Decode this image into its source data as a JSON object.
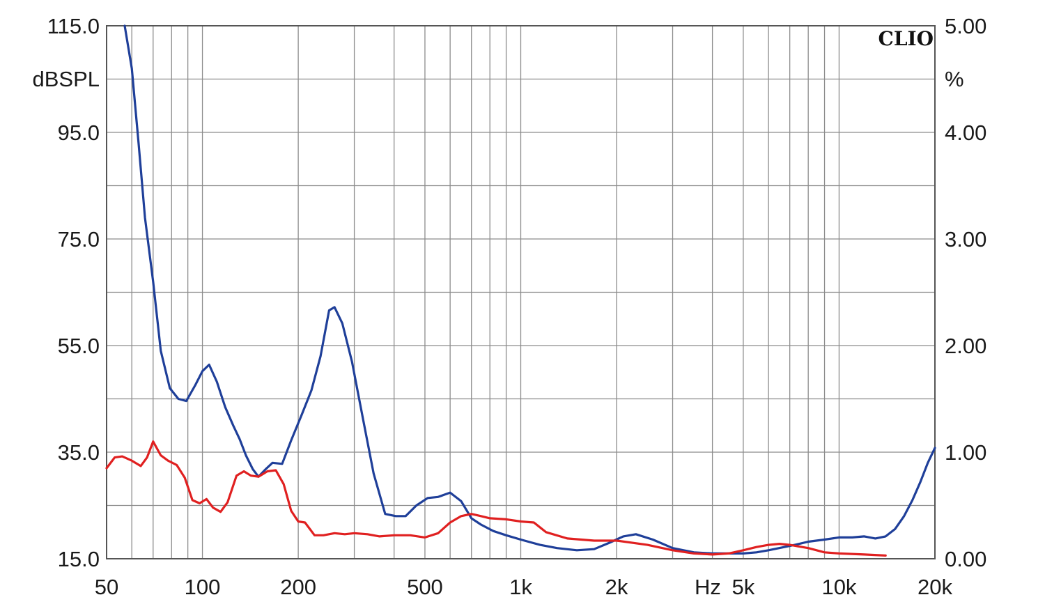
{
  "chart_data": {
    "type": "line",
    "brand": "CLIO",
    "x_scale": "log",
    "xlim": [
      50,
      20000
    ],
    "xticks": [
      50,
      100,
      200,
      500,
      1000,
      2000,
      5000,
      10000,
      20000
    ],
    "xtick_labels": [
      "50",
      "100",
      "200",
      "500",
      "1k",
      "2k",
      "5k",
      "10k",
      "20k"
    ],
    "xlabel": "Hz",
    "ylabel_left": "dBSPL",
    "ylim_left": [
      15,
      115
    ],
    "yticks_left": [
      "115.0",
      "95.0",
      "75.0",
      "55.0",
      "35.0",
      "15.0"
    ],
    "ylabel_right": "%",
    "ylim_right": [
      0,
      5
    ],
    "yticks_right": [
      "5.00",
      "4.00",
      "3.00",
      "2.00",
      "1.00",
      "0.00"
    ],
    "grid": true,
    "series": [
      {
        "color": "#1f3f99",
        "axis": "right",
        "points": [
          [
            57,
            5.0
          ],
          [
            60,
            4.6
          ],
          [
            63,
            3.9
          ],
          [
            66,
            3.2
          ],
          [
            70,
            2.6
          ],
          [
            74,
            1.95
          ],
          [
            79,
            1.6
          ],
          [
            84,
            1.5
          ],
          [
            89,
            1.48
          ],
          [
            95,
            1.63
          ],
          [
            100,
            1.76
          ],
          [
            105,
            1.82
          ],
          [
            111,
            1.66
          ],
          [
            118,
            1.42
          ],
          [
            125,
            1.25
          ],
          [
            131,
            1.12
          ],
          [
            137,
            0.97
          ],
          [
            144,
            0.84
          ],
          [
            150,
            0.77
          ],
          [
            158,
            0.84
          ],
          [
            166,
            0.9
          ],
          [
            178,
            0.89
          ],
          [
            190,
            1.11
          ],
          [
            205,
            1.35
          ],
          [
            220,
            1.58
          ],
          [
            235,
            1.9
          ],
          [
            250,
            2.33
          ],
          [
            260,
            2.36
          ],
          [
            275,
            2.21
          ],
          [
            295,
            1.85
          ],
          [
            320,
            1.3
          ],
          [
            345,
            0.8
          ],
          [
            375,
            0.42
          ],
          [
            405,
            0.4
          ],
          [
            435,
            0.4
          ],
          [
            470,
            0.5
          ],
          [
            510,
            0.57
          ],
          [
            550,
            0.58
          ],
          [
            600,
            0.62
          ],
          [
            650,
            0.54
          ],
          [
            700,
            0.38
          ],
          [
            750,
            0.32
          ],
          [
            820,
            0.26
          ],
          [
            900,
            0.22
          ],
          [
            1000,
            0.18
          ],
          [
            1150,
            0.13
          ],
          [
            1300,
            0.1
          ],
          [
            1500,
            0.08
          ],
          [
            1700,
            0.09
          ],
          [
            1900,
            0.15
          ],
          [
            2100,
            0.21
          ],
          [
            2300,
            0.23
          ],
          [
            2600,
            0.18
          ],
          [
            3000,
            0.1
          ],
          [
            3500,
            0.06
          ],
          [
            4000,
            0.05
          ],
          [
            4500,
            0.05
          ],
          [
            5000,
            0.05
          ],
          [
            5500,
            0.06
          ],
          [
            6000,
            0.08
          ],
          [
            7000,
            0.12
          ],
          [
            7500,
            0.14
          ],
          [
            8000,
            0.16
          ],
          [
            9000,
            0.18
          ],
          [
            10000,
            0.2
          ],
          [
            11000,
            0.2
          ],
          [
            12000,
            0.21
          ],
          [
            13000,
            0.19
          ],
          [
            14000,
            0.21
          ],
          [
            15000,
            0.28
          ],
          [
            16000,
            0.4
          ],
          [
            17000,
            0.55
          ],
          [
            18000,
            0.72
          ],
          [
            19000,
            0.9
          ],
          [
            20000,
            1.04
          ]
        ]
      },
      {
        "color": "#e02020",
        "axis": "right",
        "points": [
          [
            50,
            0.85
          ],
          [
            53,
            0.95
          ],
          [
            56,
            0.96
          ],
          [
            60,
            0.92
          ],
          [
            64,
            0.87
          ],
          [
            67,
            0.95
          ],
          [
            70,
            1.1
          ],
          [
            74,
            0.97
          ],
          [
            78,
            0.92
          ],
          [
            83,
            0.88
          ],
          [
            88,
            0.76
          ],
          [
            93,
            0.55
          ],
          [
            98,
            0.52
          ],
          [
            103,
            0.56
          ],
          [
            108,
            0.48
          ],
          [
            114,
            0.44
          ],
          [
            120,
            0.53
          ],
          [
            128,
            0.78
          ],
          [
            135,
            0.82
          ],
          [
            142,
            0.78
          ],
          [
            150,
            0.77
          ],
          [
            160,
            0.82
          ],
          [
            170,
            0.83
          ],
          [
            180,
            0.7
          ],
          [
            190,
            0.45
          ],
          [
            200,
            0.35
          ],
          [
            210,
            0.34
          ],
          [
            225,
            0.22
          ],
          [
            240,
            0.22
          ],
          [
            260,
            0.24
          ],
          [
            280,
            0.23
          ],
          [
            300,
            0.24
          ],
          [
            330,
            0.23
          ],
          [
            360,
            0.21
          ],
          [
            400,
            0.22
          ],
          [
            450,
            0.22
          ],
          [
            500,
            0.2
          ],
          [
            550,
            0.24
          ],
          [
            600,
            0.34
          ],
          [
            650,
            0.4
          ],
          [
            700,
            0.42
          ],
          [
            750,
            0.4
          ],
          [
            800,
            0.38
          ],
          [
            900,
            0.37
          ],
          [
            1000,
            0.35
          ],
          [
            1100,
            0.34
          ],
          [
            1200,
            0.25
          ],
          [
            1400,
            0.19
          ],
          [
            1700,
            0.17
          ],
          [
            2000,
            0.17
          ],
          [
            2500,
            0.13
          ],
          [
            3000,
            0.08
          ],
          [
            3500,
            0.05
          ],
          [
            4000,
            0.04
          ],
          [
            4500,
            0.05
          ],
          [
            5000,
            0.08
          ],
          [
            5500,
            0.11
          ],
          [
            6000,
            0.13
          ],
          [
            6500,
            0.14
          ],
          [
            7000,
            0.13
          ],
          [
            8000,
            0.1
          ],
          [
            9000,
            0.06
          ],
          [
            10000,
            0.05
          ],
          [
            12000,
            0.04
          ],
          [
            14000,
            0.03
          ]
        ]
      }
    ]
  }
}
